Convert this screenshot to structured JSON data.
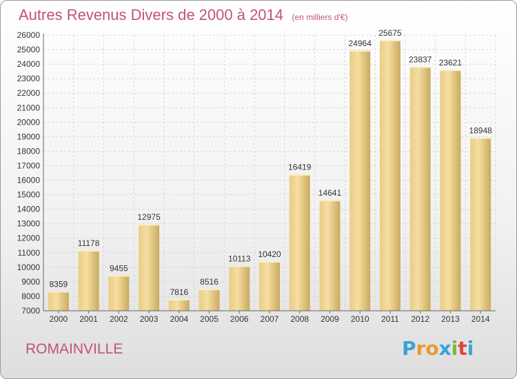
{
  "title": "Autres Revenus Divers de 2000 à 2014",
  "unit": "(en milliers d'€)",
  "city": "ROMAINVILLE",
  "logo": {
    "letters": [
      "P",
      "r",
      "o",
      "x",
      "i",
      "t",
      "i"
    ],
    "colors": [
      "#3aa3d6",
      "#e89a2a",
      "#e89a2a",
      "#3aa3d6",
      "#7db83a",
      "#e2463a",
      "#3aa3d6"
    ]
  },
  "colors": {
    "title": "#c4507d",
    "bar_light": "#f6dc9c",
    "bar_dark": "#c9ab5f",
    "grid": "#d6d6d6"
  },
  "chart_data": {
    "type": "bar",
    "categories": [
      "2000",
      "2001",
      "2002",
      "2003",
      "2004",
      "2005",
      "2006",
      "2007",
      "2008",
      "2009",
      "2010",
      "2011",
      "2012",
      "2013",
      "2014"
    ],
    "values": [
      8359,
      11178,
      9455,
      12975,
      7816,
      8516,
      10113,
      10420,
      16419,
      14641,
      24964,
      25675,
      23837,
      23621,
      18948
    ],
    "title": "Autres Revenus Divers de 2000 à 2014",
    "ylim": [
      7000,
      26000
    ],
    "yticks": [
      7000,
      8000,
      9000,
      10000,
      11000,
      12000,
      13000,
      14000,
      15000,
      16000,
      17000,
      18000,
      19000,
      20000,
      21000,
      22000,
      23000,
      24000,
      25000,
      26000
    ],
    "grid": true
  }
}
